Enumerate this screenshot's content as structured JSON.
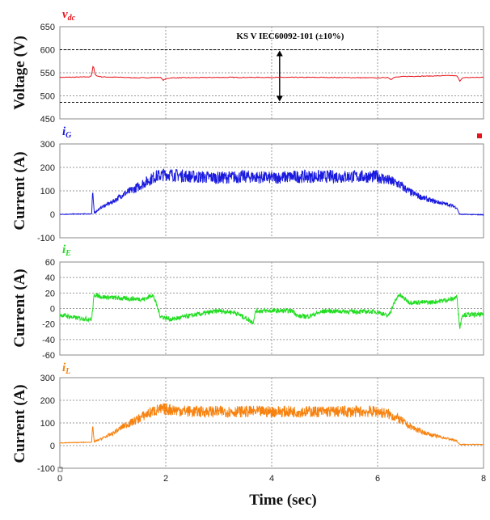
{
  "chart_data": [
    {
      "type": "line",
      "id": "vdc",
      "symbol": "v",
      "symbol_sub": "dc",
      "ylabel": "Voltage (V)",
      "ylim": [
        450,
        650
      ],
      "yticks": [
        "650",
        "600",
        "550",
        "500",
        "450"
      ],
      "xlim": [
        0,
        8
      ],
      "color": "#e8141b",
      "dashed_levels": [
        600,
        486
      ],
      "annotation": "KS V IEC60092-101 (±10%)",
      "series": [
        {
          "values": [
            [
              0,
              540
            ],
            [
              0.55,
              541
            ],
            [
              0.6,
              544
            ],
            [
              0.63,
              568
            ],
            [
              0.66,
              548
            ],
            [
              0.7,
              543
            ],
            [
              0.8,
              541
            ],
            [
              1.2,
              540
            ],
            [
              1.5,
              539
            ],
            [
              1.9,
              540
            ],
            [
              1.95,
              534
            ],
            [
              2.0,
              537
            ],
            [
              2.1,
              539
            ],
            [
              3,
              540
            ],
            [
              4,
              540
            ],
            [
              5,
              540
            ],
            [
              6,
              539
            ],
            [
              6.2,
              540
            ],
            [
              6.25,
              535
            ],
            [
              6.3,
              540
            ],
            [
              6.5,
              542
            ],
            [
              7,
              543
            ],
            [
              7.4,
              544
            ],
            [
              7.5,
              543
            ],
            [
              7.55,
              532
            ],
            [
              7.6,
              539
            ],
            [
              7.8,
              540
            ],
            [
              8,
              540
            ]
          ]
        }
      ]
    },
    {
      "type": "line",
      "id": "iG",
      "symbol": "i",
      "symbol_sub": "G",
      "ylabel": "Current  (A)",
      "ylim": [
        -100,
        300
      ],
      "yticks": [
        "300",
        "200",
        "100",
        "0",
        "-100"
      ],
      "xlim": [
        0,
        8
      ],
      "color": "#1a1adf",
      "series": [
        {
          "values": [
            [
              0,
              0
            ],
            [
              0.6,
              2
            ],
            [
              0.62,
              100
            ],
            [
              0.65,
              5
            ],
            [
              0.8,
              30
            ],
            [
              1.0,
              50
            ],
            [
              1.2,
              80
            ],
            [
              1.4,
              100
            ],
            [
              1.6,
              125
            ],
            [
              1.8,
              150
            ],
            [
              2.0,
              160
            ],
            [
              2.5,
              150
            ],
            [
              3,
              145
            ],
            [
              3.5,
              150
            ],
            [
              4,
              145
            ],
            [
              4.5,
              150
            ],
            [
              5,
              150
            ],
            [
              5.5,
              150
            ],
            [
              6,
              150
            ],
            [
              6.2,
              135
            ],
            [
              6.4,
              120
            ],
            [
              6.6,
              90
            ],
            [
              6.8,
              70
            ],
            [
              7,
              55
            ],
            [
              7.2,
              45
            ],
            [
              7.4,
              35
            ],
            [
              7.5,
              25
            ],
            [
              7.55,
              0
            ],
            [
              8,
              -2
            ]
          ]
        }
      ],
      "ripple": 55
    },
    {
      "type": "line",
      "id": "iE",
      "symbol": "i",
      "symbol_sub": "E",
      "ylabel": "Current  (A)",
      "ylim": [
        -60,
        60
      ],
      "yticks": [
        "60",
        "40",
        "20",
        "0",
        "-20",
        "-40",
        "-60"
      ],
      "xlim": [
        0,
        8
      ],
      "color": "#22dd22",
      "series": [
        {
          "values": [
            [
              0,
              -8
            ],
            [
              0.3,
              -12
            ],
            [
              0.6,
              -14
            ],
            [
              0.65,
              18
            ],
            [
              0.8,
              15
            ],
            [
              1.2,
              13
            ],
            [
              1.6,
              12
            ],
            [
              1.75,
              18
            ],
            [
              1.8,
              10
            ],
            [
              1.9,
              -10
            ],
            [
              2.1,
              -14
            ],
            [
              2.4,
              -10
            ],
            [
              3,
              -3
            ],
            [
              3.3,
              -5
            ],
            [
              3.5,
              -12
            ],
            [
              3.65,
              -18
            ],
            [
              3.7,
              -3
            ],
            [
              4,
              -3
            ],
            [
              4.4,
              -3
            ],
            [
              4.5,
              -10
            ],
            [
              4.7,
              -10
            ],
            [
              5,
              -3
            ],
            [
              5.5,
              -4
            ],
            [
              6,
              -4
            ],
            [
              6.2,
              -10
            ],
            [
              6.3,
              5
            ],
            [
              6.4,
              18
            ],
            [
              6.6,
              8
            ],
            [
              7,
              8
            ],
            [
              7.4,
              12
            ],
            [
              7.5,
              15
            ],
            [
              7.55,
              -25
            ],
            [
              7.6,
              -8
            ],
            [
              8,
              -8
            ]
          ]
        }
      ],
      "ripple": 6
    },
    {
      "type": "line",
      "id": "iL",
      "symbol": "i",
      "symbol_sub": "L",
      "ylabel": "Current  (A)",
      "ylim": [
        -100,
        300
      ],
      "yticks": [
        "300",
        "200",
        "100",
        "0",
        "-100"
      ],
      "xlim": [
        0,
        8
      ],
      "color": "#f7820f",
      "xlabel": "Time (sec)",
      "xticks": [
        "0",
        "2",
        "4",
        "6",
        "8"
      ],
      "series": [
        {
          "values": [
            [
              0,
              12
            ],
            [
              0.6,
              15
            ],
            [
              0.62,
              90
            ],
            [
              0.65,
              15
            ],
            [
              0.8,
              30
            ],
            [
              1.0,
              50
            ],
            [
              1.2,
              80
            ],
            [
              1.4,
              100
            ],
            [
              1.6,
              125
            ],
            [
              1.8,
              145
            ],
            [
              2.0,
              150
            ],
            [
              2.5,
              140
            ],
            [
              3,
              140
            ],
            [
              3.5,
              140
            ],
            [
              4,
              140
            ],
            [
              4.5,
              140
            ],
            [
              5,
              140
            ],
            [
              5.5,
              140
            ],
            [
              6,
              140
            ],
            [
              6.2,
              130
            ],
            [
              6.4,
              110
            ],
            [
              6.6,
              80
            ],
            [
              6.8,
              60
            ],
            [
              7,
              45
            ],
            [
              7.2,
              35
            ],
            [
              7.4,
              25
            ],
            [
              7.5,
              18
            ],
            [
              7.55,
              5
            ],
            [
              8,
              5
            ]
          ]
        }
      ],
      "ripple": 55
    }
  ]
}
